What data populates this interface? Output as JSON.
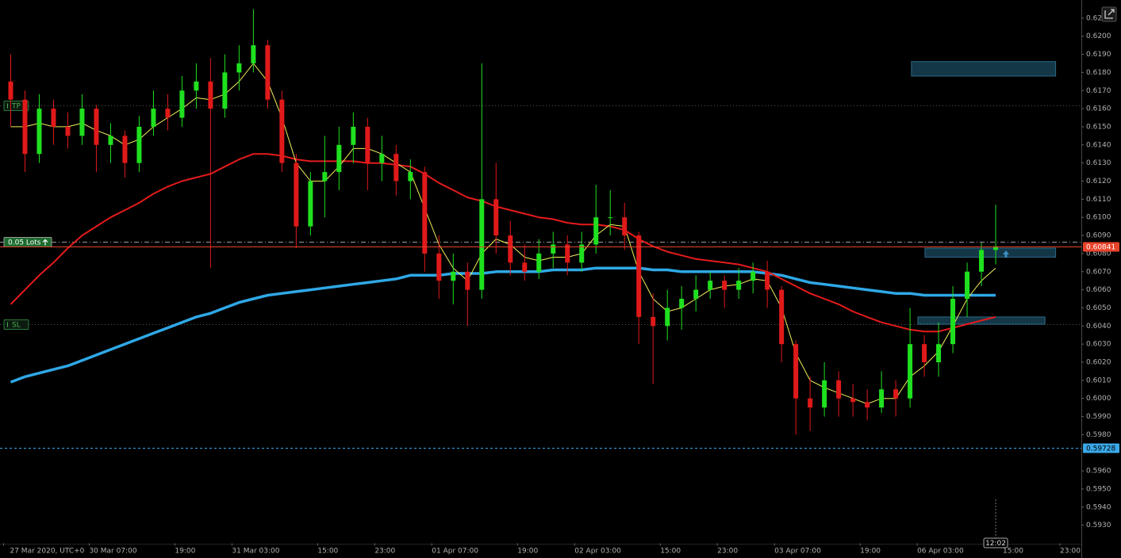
{
  "chart_data": {
    "type": "candlestick",
    "xlim": [
      -0.5,
      151
    ],
    "ylim": [
      0.592,
      0.622
    ],
    "xticks": [
      {
        "value": 0,
        "label": "27 Mar 2020, UTC+0"
      },
      {
        "value": 12,
        "label": "30 Mar 07:00"
      },
      {
        "value": 24,
        "label": "19:00"
      },
      {
        "value": 32,
        "label": "31 Mar 03:00"
      },
      {
        "value": 44,
        "label": "15:00"
      },
      {
        "value": 52,
        "label": "23:00"
      },
      {
        "value": 60,
        "label": "01 Apr 07:00"
      },
      {
        "value": 72,
        "label": "19:00"
      },
      {
        "value": 80,
        "label": "02 Apr 03:00"
      },
      {
        "value": 92,
        "label": "15:00"
      },
      {
        "value": 100,
        "label": "23:00"
      },
      {
        "value": 108,
        "label": "03 Apr 07:00"
      },
      {
        "value": 120,
        "label": "19:00"
      },
      {
        "value": 128,
        "label": "06 Apr 03:00"
      },
      {
        "value": 140,
        "label": "15:00"
      },
      {
        "value": 148,
        "label": "23:00"
      }
    ],
    "yticks": [
      {
        "value": 0.593,
        "label": "0.5930"
      },
      {
        "value": 0.594,
        "label": "0.5940"
      },
      {
        "value": 0.595,
        "label": "0.5950"
      },
      {
        "value": 0.596,
        "label": "0.5960"
      },
      {
        "value": 0.598,
        "label": "0.5980"
      },
      {
        "value": 0.599,
        "label": "0.5990"
      },
      {
        "value": 0.6,
        "label": "0.6000"
      },
      {
        "value": 0.601,
        "label": "0.6010"
      },
      {
        "value": 0.602,
        "label": "0.6020"
      },
      {
        "value": 0.603,
        "label": "0.6030"
      },
      {
        "value": 0.604,
        "label": "0.6040"
      },
      {
        "value": 0.605,
        "label": "0.6050"
      },
      {
        "value": 0.606,
        "label": "0.6060"
      },
      {
        "value": 0.607,
        "label": "0.6070"
      },
      {
        "value": 0.608,
        "label": "0.6080"
      },
      {
        "value": 0.609,
        "label": "0.6090"
      },
      {
        "value": 0.61,
        "label": "0.6100"
      },
      {
        "value": 0.611,
        "label": "0.6110"
      },
      {
        "value": 0.612,
        "label": "0.6120"
      },
      {
        "value": 0.613,
        "label": "0.6130"
      },
      {
        "value": 0.614,
        "label": "0.6140"
      },
      {
        "value": 0.615,
        "label": "0.6150"
      },
      {
        "value": 0.616,
        "label": "0.6160"
      },
      {
        "value": 0.617,
        "label": "0.6170"
      },
      {
        "value": 0.618,
        "label": "0.6180"
      },
      {
        "value": 0.619,
        "label": "0.6190"
      },
      {
        "value": 0.62,
        "label": "0.6200"
      },
      {
        "value": 0.621,
        "label": "0.62"
      }
    ],
    "up_color": "#1fe01f",
    "down_color": "#e01919",
    "candles": {
      "x": [
        1,
        3,
        5,
        7,
        9,
        11,
        13,
        15,
        17,
        19,
        21,
        23,
        25,
        27,
        29,
        31,
        33,
        35,
        37,
        39,
        41,
        43,
        45,
        47,
        49,
        51,
        53,
        55,
        57,
        59,
        61,
        63,
        65,
        67,
        69,
        71,
        73,
        75,
        77,
        79,
        81,
        83,
        85,
        87,
        89,
        91,
        93,
        95,
        97,
        99,
        101,
        103,
        105,
        107,
        109,
        111,
        113,
        115,
        117,
        119,
        121,
        123,
        125,
        127,
        129,
        131,
        133,
        135,
        137,
        139
      ],
      "open": [
        0.6175,
        0.6165,
        0.6135,
        0.616,
        0.615,
        0.6145,
        0.616,
        0.614,
        0.6145,
        0.613,
        0.615,
        0.616,
        0.6155,
        0.617,
        0.6175,
        0.616,
        0.618,
        0.6185,
        0.6195,
        0.6165,
        0.613,
        0.6095,
        0.612,
        0.6125,
        0.614,
        0.615,
        0.613,
        0.6135,
        0.612,
        0.6125,
        0.608,
        0.6065,
        0.607,
        0.606,
        0.611,
        0.609,
        0.6075,
        0.607,
        0.608,
        0.6085,
        0.6075,
        0.6085,
        0.61,
        0.61,
        0.609,
        0.6045,
        0.604,
        0.605,
        0.6055,
        0.606,
        0.6065,
        0.606,
        0.6065,
        0.607,
        0.606,
        0.603,
        0.6,
        0.5995,
        0.601,
        0.6,
        0.5998,
        0.5995,
        0.6005,
        0.6,
        0.603,
        0.602,
        0.603,
        0.6055,
        0.607,
        0.6082
      ],
      "high": [
        0.619,
        0.617,
        0.6168,
        0.6165,
        0.6158,
        0.6168,
        0.6162,
        0.6152,
        0.6148,
        0.6156,
        0.617,
        0.6168,
        0.6178,
        0.6185,
        0.6188,
        0.619,
        0.6195,
        0.6215,
        0.6198,
        0.617,
        0.6135,
        0.6125,
        0.6145,
        0.615,
        0.6158,
        0.6155,
        0.6145,
        0.614,
        0.6132,
        0.6128,
        0.609,
        0.608,
        0.6075,
        0.6185,
        0.613,
        0.6098,
        0.6085,
        0.6088,
        0.6092,
        0.609,
        0.6092,
        0.6118,
        0.6115,
        0.6108,
        0.6092,
        0.6058,
        0.606,
        0.6062,
        0.6068,
        0.607,
        0.6068,
        0.6072,
        0.6075,
        0.6076,
        0.6062,
        0.6032,
        0.6012,
        0.602,
        0.6015,
        0.6008,
        0.6005,
        0.6015,
        0.601,
        0.605,
        0.6035,
        0.6042,
        0.6062,
        0.6075,
        0.6086,
        0.6107
      ],
      "low": [
        0.615,
        0.6125,
        0.613,
        0.614,
        0.6138,
        0.614,
        0.6125,
        0.613,
        0.6122,
        0.6125,
        0.6145,
        0.6148,
        0.615,
        0.616,
        0.6072,
        0.6155,
        0.617,
        0.618,
        0.616,
        0.6125,
        0.6083,
        0.609,
        0.61,
        0.6115,
        0.613,
        0.6115,
        0.612,
        0.6112,
        0.611,
        0.607,
        0.6055,
        0.6052,
        0.604,
        0.6055,
        0.608,
        0.6068,
        0.6065,
        0.6066,
        0.6072,
        0.6068,
        0.607,
        0.608,
        0.609,
        0.6082,
        0.603,
        0.6008,
        0.6032,
        0.6038,
        0.6048,
        0.6055,
        0.605,
        0.6055,
        0.6058,
        0.605,
        0.602,
        0.598,
        0.5982,
        0.599,
        0.599,
        0.599,
        0.5988,
        0.5992,
        0.599,
        0.5995,
        0.6012,
        0.6012,
        0.6025,
        0.6045,
        0.6062,
        0.6074
      ],
      "close": [
        0.6165,
        0.6135,
        0.616,
        0.615,
        0.6145,
        0.616,
        0.614,
        0.6145,
        0.613,
        0.615,
        0.616,
        0.6155,
        0.617,
        0.6175,
        0.616,
        0.618,
        0.6185,
        0.6195,
        0.6165,
        0.613,
        0.6095,
        0.612,
        0.6125,
        0.614,
        0.615,
        0.613,
        0.6135,
        0.612,
        0.6125,
        0.608,
        0.6065,
        0.607,
        0.606,
        0.611,
        0.609,
        0.6075,
        0.607,
        0.608,
        0.6085,
        0.6075,
        0.6085,
        0.61,
        0.61,
        0.609,
        0.6045,
        0.604,
        0.605,
        0.6055,
        0.606,
        0.6065,
        0.606,
        0.6065,
        0.607,
        0.606,
        0.603,
        0.6,
        0.5995,
        0.601,
        0.6,
        0.5998,
        0.5995,
        0.6005,
        0.6,
        0.603,
        0.602,
        0.603,
        0.6055,
        0.607,
        0.6082,
        0.6084
      ]
    },
    "indicators": [
      {
        "color": "#2fa8e6",
        "width": 3.5,
        "values": [
          0.6009,
          0.6012,
          0.6014,
          0.6016,
          0.6018,
          0.6021,
          0.6024,
          0.6027,
          0.603,
          0.6033,
          0.6036,
          0.6039,
          0.6042,
          0.6045,
          0.6047,
          0.605,
          0.6053,
          0.6055,
          0.6057,
          0.6058,
          0.6059,
          0.606,
          0.6061,
          0.6062,
          0.6063,
          0.6064,
          0.6065,
          0.6066,
          0.6068,
          0.6068,
          0.6068,
          0.6069,
          0.6069,
          0.6069,
          0.607,
          0.607,
          0.607,
          0.607,
          0.6071,
          0.6071,
          0.6071,
          0.6072,
          0.6072,
          0.6072,
          0.6072,
          0.6071,
          0.6071,
          0.607,
          0.607,
          0.607,
          0.607,
          0.607,
          0.607,
          0.6069,
          0.6068,
          0.6066,
          0.6064,
          0.6063,
          0.6062,
          0.6061,
          0.606,
          0.6059,
          0.6058,
          0.6058,
          0.6057,
          0.6057,
          0.6057,
          0.6057,
          0.6057,
          0.6057
        ]
      },
      {
        "color": "#e51b1b",
        "width": 2,
        "values": [
          0.6052,
          0.606,
          0.6068,
          0.6075,
          0.6083,
          0.609,
          0.6095,
          0.61,
          0.6104,
          0.6108,
          0.6113,
          0.6117,
          0.612,
          0.6122,
          0.6124,
          0.6128,
          0.6132,
          0.6135,
          0.6135,
          0.6134,
          0.6132,
          0.6131,
          0.6131,
          0.6131,
          0.6131,
          0.613,
          0.613,
          0.6129,
          0.6128,
          0.6124,
          0.6119,
          0.6115,
          0.6111,
          0.6109,
          0.6106,
          0.6104,
          0.6102,
          0.61,
          0.6099,
          0.6097,
          0.6096,
          0.6096,
          0.6095,
          0.6093,
          0.6088,
          0.6084,
          0.6081,
          0.6079,
          0.6077,
          0.6076,
          0.6075,
          0.6074,
          0.6072,
          0.607,
          0.6066,
          0.6062,
          0.6058,
          0.6055,
          0.6052,
          0.6048,
          0.6045,
          0.6042,
          0.604,
          0.6038,
          0.6037,
          0.6037,
          0.6039,
          0.6041,
          0.6043,
          0.6045
        ]
      },
      {
        "color": "#f2ef5a",
        "width": 1,
        "values": [
          0.615,
          0.615,
          0.6152,
          0.615,
          0.615,
          0.6152,
          0.6148,
          0.6145,
          0.614,
          0.6143,
          0.615,
          0.6155,
          0.616,
          0.6166,
          0.6165,
          0.6168,
          0.6175,
          0.6185,
          0.6175,
          0.6155,
          0.613,
          0.612,
          0.612,
          0.6128,
          0.6138,
          0.6138,
          0.6135,
          0.613,
          0.6125,
          0.6105,
          0.6085,
          0.6072,
          0.6065,
          0.608,
          0.6088,
          0.6085,
          0.6078,
          0.6076,
          0.6078,
          0.6078,
          0.608,
          0.609,
          0.6096,
          0.6095,
          0.607,
          0.6055,
          0.6048,
          0.605,
          0.6055,
          0.606,
          0.6062,
          0.6063,
          0.6066,
          0.6065,
          0.605,
          0.6025,
          0.601,
          0.6006,
          0.6003,
          0.6,
          0.5997,
          0.6,
          0.6,
          0.6012,
          0.6018,
          0.6026,
          0.604,
          0.6055,
          0.6065,
          0.6072
        ]
      }
    ],
    "levels": [
      {
        "label": "TP",
        "value": 0.6162,
        "color": "#2a7a3a"
      },
      {
        "label": "SL",
        "value": 0.6041,
        "color": "#2a7a3a"
      },
      {
        "label": "0.05 Lots",
        "value": 0.60867,
        "color": "#9a9a9a"
      }
    ],
    "bid": {
      "label": "0.60841",
      "value": 0.60841,
      "color": "#e8432a"
    },
    "marker": {
      "label": "0.59728",
      "value": 0.59728,
      "color": "#3aa8e8"
    },
    "zones": [
      {
        "x": [
          127.2,
          147.4
        ],
        "y": [
          0.6178,
          0.6186
        ]
      },
      {
        "x": [
          129.1,
          147.4
        ],
        "y": [
          0.6078,
          0.6083
        ]
      },
      {
        "x": [
          128.1,
          145.9
        ],
        "y": [
          0.6041,
          0.6045
        ]
      }
    ],
    "time_label": "12:02"
  }
}
